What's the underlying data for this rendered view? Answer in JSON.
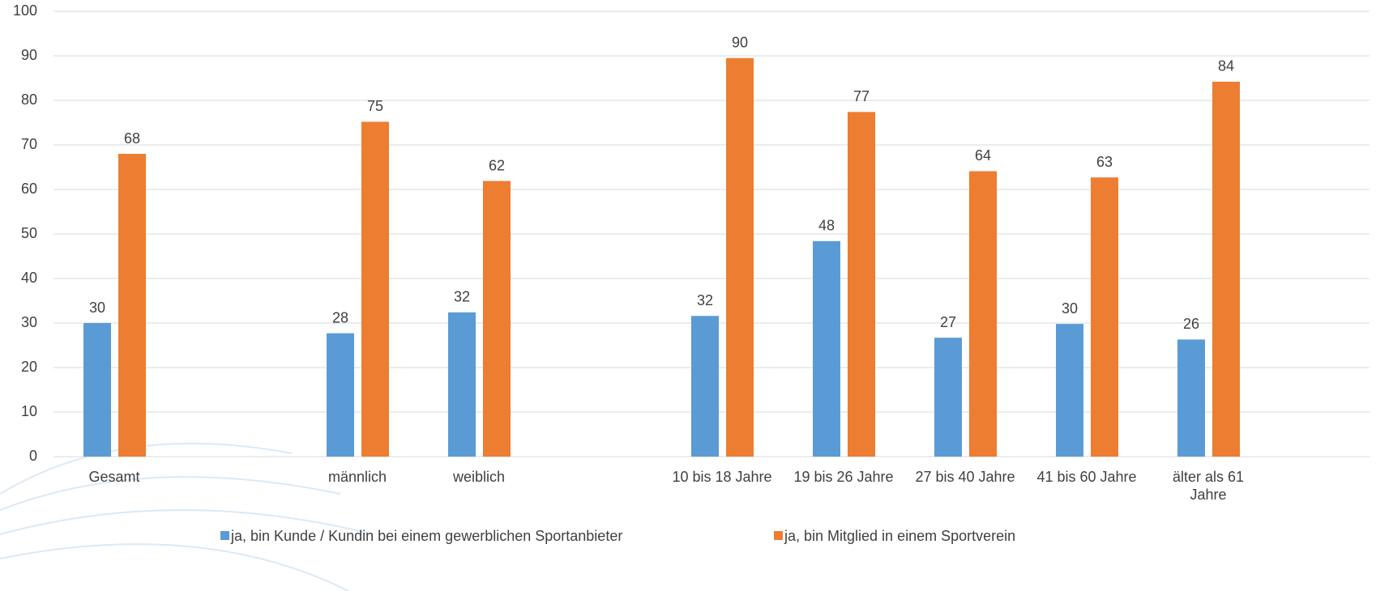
{
  "chart_data": {
    "type": "bar",
    "categories": [
      "Gesamt",
      null,
      "männlich",
      "weiblich",
      null,
      "10 bis 18 Jahre",
      "19 bis 26 Jahre",
      "27 bis 40 Jahre",
      "41 bis 60 Jahre",
      "älter als 61 Jahre"
    ],
    "series": [
      {
        "name": "ja, bin Kunde / Kundin bei einem gewerblichen Sportanbieter",
        "color": "#5b9bd5",
        "values": [
          30,
          null,
          27.7,
          32.4,
          null,
          31.6,
          48.4,
          26.7,
          29.8,
          26.3
        ],
        "value_labels": [
          "30",
          null,
          "28",
          "32",
          null,
          "32",
          "48",
          "27",
          "30",
          "26"
        ]
      },
      {
        "name": "ja, bin Mitglied in einem Sportverein",
        "color": "#ed7d31",
        "values": [
          68,
          null,
          75.2,
          61.9,
          null,
          89.5,
          77.4,
          64.1,
          62.7,
          84.2
        ],
        "value_labels": [
          "68",
          null,
          "75",
          "62",
          null,
          "90",
          "77",
          "64",
          "63",
          "84"
        ]
      }
    ],
    "ylim": [
      0,
      100
    ],
    "yticks": [
      0,
      10,
      20,
      30,
      40,
      50,
      60,
      70,
      80,
      90,
      100
    ],
    "grid": true,
    "legend": "bottom"
  }
}
